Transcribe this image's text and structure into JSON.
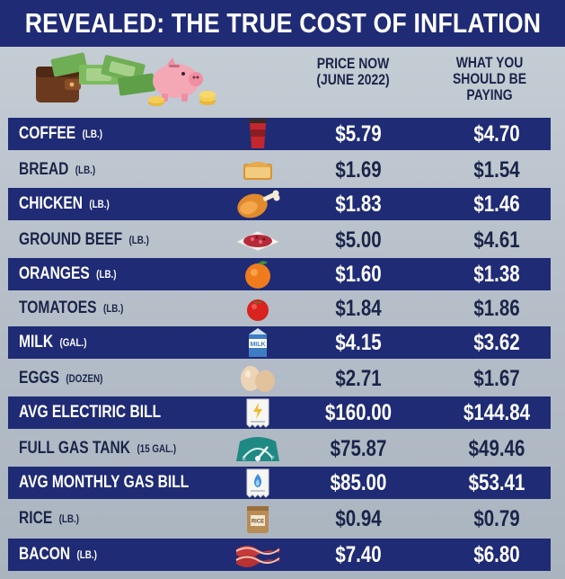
{
  "title": "REVEALED: THE TRUE COST OF INFLATION",
  "headers": {
    "now_line1": "PRICE NOW",
    "now_line2": "(JUNE 2022)",
    "should_line1": "WHAT YOU",
    "should_line2": "SHOULD BE",
    "should_line3": "PAYING"
  },
  "rows": [
    {
      "name": "COFFEE",
      "unit": "(LB.)",
      "now": "$5.79",
      "should": "$4.70",
      "icon": "coffee-cup-icon"
    },
    {
      "name": "BREAD",
      "unit": "(LB.)",
      "now": "$1.69",
      "should": "$1.54",
      "icon": "bread-icon"
    },
    {
      "name": "CHICKEN",
      "unit": "(LB.)",
      "now": "$1.83",
      "should": "$1.46",
      "icon": "chicken-leg-icon"
    },
    {
      "name": "GROUND BEEF",
      "unit": "(LB.)",
      "now": "$5.00",
      "should": "$4.61",
      "icon": "ground-beef-icon"
    },
    {
      "name": "ORANGES",
      "unit": "(LB.)",
      "now": "$1.60",
      "should": "$1.38",
      "icon": "orange-icon"
    },
    {
      "name": "TOMATOES",
      "unit": "(LB.)",
      "now": "$1.84",
      "should": "$1.86",
      "icon": "tomato-icon"
    },
    {
      "name": "MILK",
      "unit": "(GAL.)",
      "now": "$4.15",
      "should": "$3.62",
      "icon": "milk-carton-icon",
      "icon_text": "MILK"
    },
    {
      "name": "EGGS",
      "unit": "(DOZEN)",
      "now": "$2.71",
      "should": "$1.67",
      "icon": "eggs-icon"
    },
    {
      "name": "AVG ELECTIRIC BILL",
      "unit": "",
      "now": "$160.00",
      "should": "$144.84",
      "icon": "electric-bill-icon"
    },
    {
      "name": "FULL GAS TANK",
      "unit": "(15 GAL.)",
      "now": "$75.87",
      "should": "$49.46",
      "icon": "fuel-gauge-icon"
    },
    {
      "name": "AVG MONTHLY GAS BILL",
      "unit": "",
      "now": "$85.00",
      "should": "$53.41",
      "icon": "gas-bill-icon"
    },
    {
      "name": "RICE",
      "unit": "(LB.)",
      "now": "$0.94",
      "should": "$0.79",
      "icon": "rice-bag-icon",
      "icon_text": "RICE"
    },
    {
      "name": "BACON",
      "unit": "(LB.)",
      "now": "$7.40",
      "should": "$6.80",
      "icon": "bacon-icon"
    }
  ],
  "colors": {
    "navy": "#1f2b74",
    "light_bg": "#b7c0c9",
    "text_dark": "#1b2449",
    "text_light": "#ffffff"
  }
}
